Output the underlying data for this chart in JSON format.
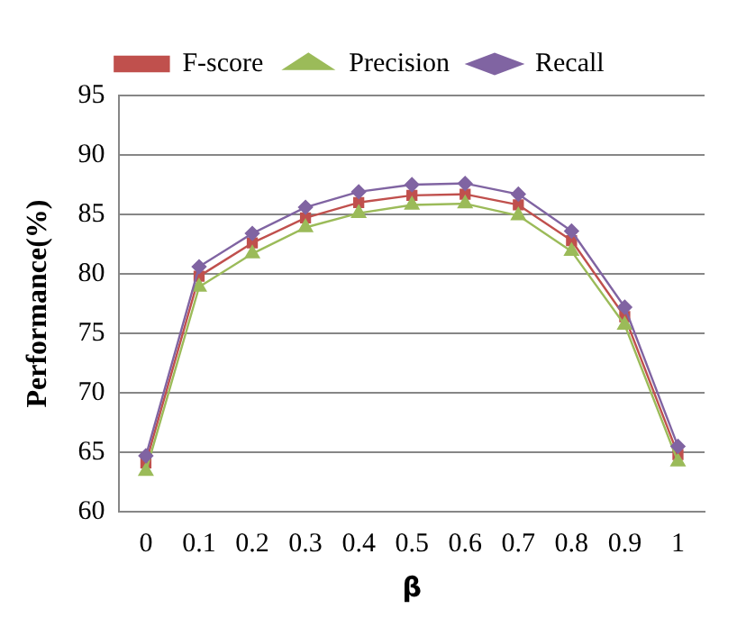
{
  "chart_data": {
    "type": "line",
    "xlabel": "β",
    "ylabel": "Performance(%)",
    "categories": [
      "0",
      "0.1",
      "0.2",
      "0.3",
      "0.4",
      "0.5",
      "0.6",
      "0.7",
      "0.8",
      "0.9",
      "1"
    ],
    "series": [
      {
        "name": "F-score",
        "color": "#c0504d",
        "marker": "square",
        "values": [
          64.1,
          79.8,
          82.6,
          84.7,
          86.0,
          86.6,
          86.7,
          85.8,
          82.8,
          76.4,
          64.8
        ]
      },
      {
        "name": "Precision",
        "color": "#9bbb59",
        "marker": "triangle",
        "values": [
          63.4,
          78.9,
          81.7,
          83.9,
          85.1,
          85.8,
          85.9,
          84.9,
          81.9,
          75.7,
          64.2
        ]
      },
      {
        "name": "Recall",
        "color": "#8064a2",
        "marker": "diamond",
        "values": [
          64.7,
          80.6,
          83.4,
          85.6,
          86.9,
          87.5,
          87.6,
          86.7,
          83.6,
          77.2,
          65.5
        ]
      }
    ],
    "ylim": [
      60,
      95
    ],
    "yticks": [
      60,
      65,
      70,
      75,
      80,
      85,
      90,
      95
    ],
    "grid": "y",
    "legend": "top"
  }
}
